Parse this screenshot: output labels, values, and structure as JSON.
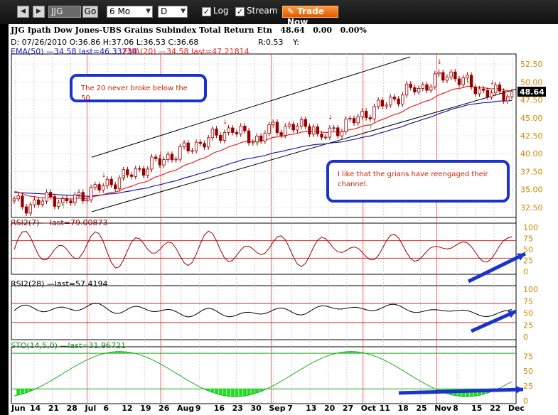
{
  "toolbar": {
    "symbol": "JJG",
    "go_label": "Go",
    "period": "6 Mo",
    "interval": "D",
    "log_label": "Log",
    "log_checked": true,
    "stream_label": "Stream",
    "stream_checked": true,
    "trade_label": "Trade Now"
  },
  "header": {
    "title": "JJG Ipath Dow Jones-UBS Grains Subindex Total Return Etn",
    "price": "48.64",
    "change": "0.00",
    "change_pct": "0.00%",
    "ohlc": "D: 07/26/2010 O:36.86 H:37.06 L:36.53 C:36.68",
    "r": "R:0.53",
    "y": "Y:",
    "ema50_label": "EMA(50) —34.58 last=46.33234",
    "ema20_label": "EMA(20) —34.58 last=47.21814"
  },
  "panels": {
    "rsi7_label": "RSI2(7) —last=79.00873",
    "rsi28_label": "RSI2(28) —last=57.4194",
    "sto_label": "STO(14,5,0) —last=31.96721"
  },
  "annotations": {
    "note1": "The 20 never broke below the 50",
    "note2": "I like that the grians have reengaged their channel."
  },
  "colors": {
    "toolbar_bg": "#1a1a1a",
    "price_candle": "#990000",
    "ema20": "#ee2222",
    "ema50": "#1a1aaa",
    "rsi7_line": "#990000",
    "rsi28_line": "#000000",
    "sto_fill": "#22dd22",
    "buy_arrow": "#22bb22",
    "sell_arrow": "#dd2222",
    "annotation_arrow": "#1a33cc"
  },
  "chart_data": {
    "type": "candlestick",
    "x_labels": [
      "Jun",
      "14",
      "21",
      "28",
      "Jul",
      "6",
      "12",
      "19",
      "26",
      "Aug",
      "9",
      "16",
      "23",
      "30",
      "Sep",
      "7",
      "13",
      "20",
      "27",
      "Oct",
      "11",
      "18",
      "25",
      "Nov",
      "8",
      "15",
      "22",
      "Dec"
    ],
    "price_axis": {
      "ticks": [
        32.5,
        35.0,
        37.5,
        40.0,
        42.5,
        45.0,
        47.5,
        50.0,
        52.5
      ],
      "range": [
        31.5,
        53.5
      ],
      "last": 48.64
    },
    "ema20": {
      "name": "EMA(20)",
      "last": 47.21814
    },
    "ema50": {
      "name": "EMA(50)",
      "last": 46.33234
    },
    "channel": {
      "upper_start": 39.5,
      "upper_end": 53.5,
      "lower_start": 31.9,
      "lower_end": 49.0
    },
    "rsi7": {
      "last": 79.00873,
      "ticks": [
        0,
        25,
        50,
        75,
        100
      ]
    },
    "rsi28": {
      "last": 57.4194,
      "ticks": [
        0,
        25,
        50,
        75,
        100
      ]
    },
    "sto": {
      "last": 31.96721,
      "ticks": [
        0,
        25,
        50,
        75
      ]
    }
  }
}
